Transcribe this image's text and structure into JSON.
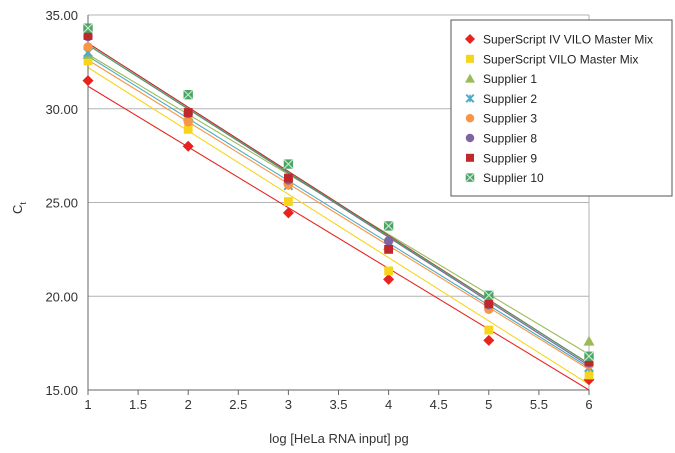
{
  "chart_data": {
    "type": "scatter",
    "title": "",
    "xlabel": "log [HeLa RNA input] pg",
    "ylabel": "C",
    "ylabel_subscript": "t",
    "xlim": [
      1,
      6
    ],
    "ylim": [
      15,
      35
    ],
    "x_ticks": [
      "1",
      "1.5",
      "2",
      "2.5",
      "3",
      "3.5",
      "4",
      "4.5",
      "5",
      "5.5",
      "6"
    ],
    "y_ticks": [
      "15.00",
      "20.00",
      "25.00",
      "30.00",
      "35.00"
    ],
    "grid": "horizontal",
    "legend_position": "top-right",
    "x": [
      1,
      2,
      3,
      4,
      5,
      6
    ],
    "series": [
      {
        "name": "SuperScript IV VILO Master Mix",
        "marker": "diamond",
        "color": "#e8231f",
        "values": [
          31.5,
          28.0,
          24.45,
          20.9,
          17.65,
          15.55
        ],
        "trendline": [
          31.2,
          15.0
        ]
      },
      {
        "name": "SuperScript VILO Master Mix",
        "marker": "square",
        "color": "#f7d51d",
        "values": [
          32.55,
          28.9,
          25.05,
          21.35,
          18.2,
          15.8
        ],
        "trendline": [
          32.2,
          15.3
        ]
      },
      {
        "name": "Supplier 1",
        "marker": "triangle",
        "color": "#9bbb59",
        "values": [
          32.9,
          29.6,
          26.2,
          22.7,
          19.8,
          17.6
        ],
        "trendline": [
          32.9,
          16.9
        ]
      },
      {
        "name": "Supplier 2",
        "marker": "x",
        "color": "#4bacc6",
        "values": [
          33.0,
          29.5,
          25.9,
          22.75,
          19.5,
          16.2
        ],
        "trendline": [
          32.8,
          16.2
        ]
      },
      {
        "name": "Supplier 3",
        "marker": "circle",
        "color": "#f79646",
        "values": [
          33.3,
          29.3,
          25.95,
          22.55,
          19.3,
          16.35
        ],
        "trendline": [
          32.6,
          16.1
        ]
      },
      {
        "name": "Supplier 8",
        "marker": "circle",
        "color": "#8064a2",
        "values": [
          33.85,
          29.75,
          26.2,
          22.95,
          19.55,
          16.45
        ],
        "trendline": [
          33.4,
          16.3
        ]
      },
      {
        "name": "Supplier 9",
        "marker": "square",
        "color": "#c0272d",
        "values": [
          33.9,
          29.8,
          26.3,
          22.5,
          19.6,
          16.5
        ],
        "trendline": [
          33.5,
          16.4
        ]
      },
      {
        "name": "Supplier 10",
        "marker": "boxx",
        "color": "#4aa564",
        "values": [
          34.3,
          30.75,
          27.05,
          23.75,
          20.05,
          16.8
        ],
        "trendline": [
          33.4,
          16.4
        ]
      }
    ]
  }
}
